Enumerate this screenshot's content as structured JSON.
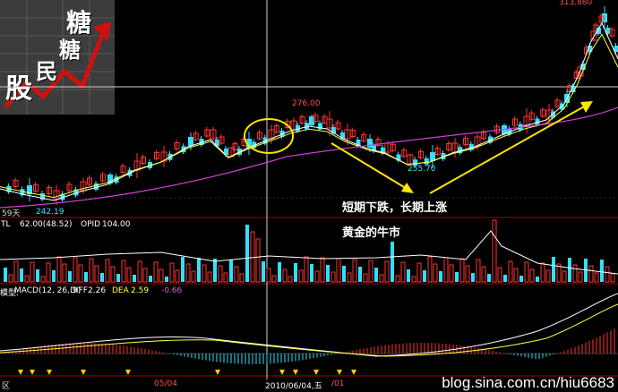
{
  "logo": {
    "char1": "糖",
    "char2": "糖",
    "char3": "民",
    "char4": "股"
  },
  "price_labels": {
    "high": "313.880",
    "p276": "276.00",
    "p255": "255.70",
    "p242": "242.19"
  },
  "ma_label": "59天",
  "volume_panel": {
    "name": "TL",
    "value": "62.00(48.52)",
    "opid_label": "OPID",
    "opid_value": "104.00"
  },
  "macd_panel": {
    "prefix": "模型:",
    "name": "MACD(12, 26, 9)",
    "diff_label": "DIFF",
    "diff_value": "2.26",
    "dea_label": "DEA",
    "dea_value": "2.59",
    "macd_value": "-0.66"
  },
  "annotations": {
    "short_long": "短期下跌，长期上涨",
    "golden_bull": "黄金的牛市"
  },
  "date_axis": {
    "left": "区",
    "d1": "05/04",
    "d2": "2010/06/04,五",
    "d3": "/01"
  },
  "watermark": "blog.sina.com.cn/hiu6683",
  "colors": {
    "up": "#ff3232",
    "down": "#2fe0ff",
    "ma1": "#ffffff",
    "ma2": "#ffff40",
    "ma3": "#d040d0",
    "grid": "#a00000",
    "annotation": "#ffe600"
  },
  "chart_data": {
    "type": "candlestick",
    "panels": [
      "price",
      "volume",
      "macd"
    ],
    "price_levels_labeled": [
      313.88,
      276.0,
      255.7,
      242.19
    ],
    "macd": {
      "diff": 2.26,
      "dea": 2.59,
      "macd": -0.66
    }
  }
}
